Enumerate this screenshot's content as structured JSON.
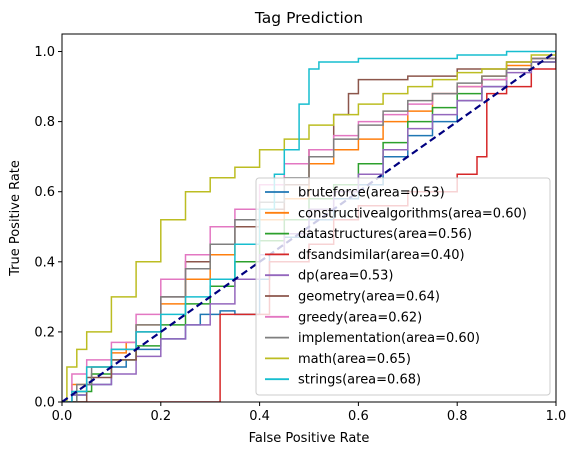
{
  "chart_data": {
    "type": "line",
    "title": "Tag Prediction",
    "xlabel": "False Positive Rate",
    "ylabel": "True Positive Rate",
    "xlim": [
      0.0,
      1.0
    ],
    "ylim": [
      0.0,
      1.05
    ],
    "xticks": [
      "0.0",
      "0.2",
      "0.4",
      "0.6",
      "0.8",
      "1.0"
    ],
    "yticks": [
      "0.0",
      "0.2",
      "0.4",
      "0.6",
      "0.8",
      "1.0"
    ],
    "grid": false,
    "legend_position": "lower-right",
    "diagonal": {
      "color": "#000080",
      "style": "dashed",
      "points": [
        [
          0,
          0
        ],
        [
          1,
          1
        ]
      ]
    },
    "series": [
      {
        "name": "bruteforce(area=0.53)",
        "color": "#1f77b4",
        "points": [
          [
            0,
            0
          ],
          [
            0.02,
            0.02
          ],
          [
            0.05,
            0.05
          ],
          [
            0.1,
            0.1
          ],
          [
            0.13,
            0.12
          ],
          [
            0.15,
            0.15
          ],
          [
            0.2,
            0.18
          ],
          [
            0.25,
            0.22
          ],
          [
            0.28,
            0.25
          ],
          [
            0.3,
            0.25
          ],
          [
            0.32,
            0.26
          ],
          [
            0.35,
            0.25
          ],
          [
            0.4,
            0.35
          ],
          [
            0.42,
            0.42
          ],
          [
            0.45,
            0.47
          ],
          [
            0.5,
            0.52
          ],
          [
            0.55,
            0.58
          ],
          [
            0.6,
            0.62
          ],
          [
            0.65,
            0.7
          ],
          [
            0.7,
            0.76
          ],
          [
            0.75,
            0.8
          ],
          [
            0.8,
            0.86
          ],
          [
            0.85,
            0.9
          ],
          [
            0.9,
            0.95
          ],
          [
            0.95,
            0.97
          ],
          [
            1,
            1
          ]
        ]
      },
      {
        "name": "constructivealgorithms(area=0.60)",
        "color": "#ff7f0e",
        "points": [
          [
            0,
            0
          ],
          [
            0.02,
            0.05
          ],
          [
            0.05,
            0.1
          ],
          [
            0.1,
            0.14
          ],
          [
            0.13,
            0.17
          ],
          [
            0.15,
            0.22
          ],
          [
            0.2,
            0.28
          ],
          [
            0.25,
            0.35
          ],
          [
            0.3,
            0.42
          ],
          [
            0.35,
            0.45
          ],
          [
            0.4,
            0.52
          ],
          [
            0.45,
            0.58
          ],
          [
            0.5,
            0.68
          ],
          [
            0.55,
            0.72
          ],
          [
            0.6,
            0.75
          ],
          [
            0.65,
            0.8
          ],
          [
            0.7,
            0.83
          ],
          [
            0.75,
            0.88
          ],
          [
            0.8,
            0.9
          ],
          [
            0.85,
            0.93
          ],
          [
            0.9,
            0.96
          ],
          [
            0.95,
            0.98
          ],
          [
            1,
            1
          ]
        ]
      },
      {
        "name": "datastructures(area=0.56)",
        "color": "#2ca02c",
        "points": [
          [
            0,
            0
          ],
          [
            0.03,
            0.03
          ],
          [
            0.06,
            0.08
          ],
          [
            0.1,
            0.12
          ],
          [
            0.15,
            0.16
          ],
          [
            0.2,
            0.22
          ],
          [
            0.25,
            0.28
          ],
          [
            0.3,
            0.33
          ],
          [
            0.35,
            0.4
          ],
          [
            0.4,
            0.46
          ],
          [
            0.45,
            0.52
          ],
          [
            0.5,
            0.58
          ],
          [
            0.55,
            0.62
          ],
          [
            0.6,
            0.68
          ],
          [
            0.65,
            0.74
          ],
          [
            0.7,
            0.8
          ],
          [
            0.75,
            0.84
          ],
          [
            0.8,
            0.88
          ],
          [
            0.85,
            0.92
          ],
          [
            0.9,
            0.95
          ],
          [
            0.95,
            0.97
          ],
          [
            1,
            1
          ]
        ]
      },
      {
        "name": "dfsandsimilar(area=0.40)",
        "color": "#d62728",
        "points": [
          [
            0,
            0
          ],
          [
            0.32,
            0
          ],
          [
            0.32,
            0.25
          ],
          [
            0.4,
            0.25
          ],
          [
            0.42,
            0.4
          ],
          [
            0.5,
            0.45
          ],
          [
            0.55,
            0.52
          ],
          [
            0.6,
            0.56
          ],
          [
            0.7,
            0.6
          ],
          [
            0.8,
            0.6
          ],
          [
            0.8,
            0.65
          ],
          [
            0.84,
            0.7
          ],
          [
            0.86,
            0.82
          ],
          [
            0.86,
            0.88
          ],
          [
            0.9,
            0.9
          ],
          [
            0.95,
            0.95
          ],
          [
            1,
            1
          ]
        ]
      },
      {
        "name": "dp(area=0.53)",
        "color": "#9467bd",
        "points": [
          [
            0,
            0
          ],
          [
            0.02,
            0.02
          ],
          [
            0.05,
            0.05
          ],
          [
            0.1,
            0.08
          ],
          [
            0.15,
            0.13
          ],
          [
            0.2,
            0.18
          ],
          [
            0.25,
            0.22
          ],
          [
            0.3,
            0.28
          ],
          [
            0.35,
            0.35
          ],
          [
            0.4,
            0.42
          ],
          [
            0.45,
            0.48
          ],
          [
            0.5,
            0.55
          ],
          [
            0.55,
            0.6
          ],
          [
            0.6,
            0.65
          ],
          [
            0.65,
            0.72
          ],
          [
            0.7,
            0.78
          ],
          [
            0.75,
            0.82
          ],
          [
            0.8,
            0.86
          ],
          [
            0.85,
            0.9
          ],
          [
            0.9,
            0.94
          ],
          [
            0.95,
            0.97
          ],
          [
            1,
            1
          ]
        ]
      },
      {
        "name": "geometry(area=0.64)",
        "color": "#8c564b",
        "points": [
          [
            0,
            0
          ],
          [
            0.05,
            0.07
          ],
          [
            0.1,
            0.12
          ],
          [
            0.15,
            0.2
          ],
          [
            0.2,
            0.3
          ],
          [
            0.25,
            0.4
          ],
          [
            0.3,
            0.45
          ],
          [
            0.35,
            0.5
          ],
          [
            0.4,
            0.55
          ],
          [
            0.45,
            0.62
          ],
          [
            0.5,
            0.72
          ],
          [
            0.55,
            0.82
          ],
          [
            0.58,
            0.88
          ],
          [
            0.6,
            0.92
          ],
          [
            0.7,
            0.93
          ],
          [
            0.8,
            0.95
          ],
          [
            0.9,
            0.97
          ],
          [
            0.95,
            0.98
          ],
          [
            1,
            1
          ]
        ]
      },
      {
        "name": "greedy(area=0.62)",
        "color": "#e377c2",
        "points": [
          [
            0,
            0
          ],
          [
            0.02,
            0.08
          ],
          [
            0.05,
            0.12
          ],
          [
            0.1,
            0.17
          ],
          [
            0.15,
            0.25
          ],
          [
            0.2,
            0.35
          ],
          [
            0.25,
            0.42
          ],
          [
            0.3,
            0.5
          ],
          [
            0.35,
            0.55
          ],
          [
            0.4,
            0.62
          ],
          [
            0.45,
            0.68
          ],
          [
            0.5,
            0.72
          ],
          [
            0.55,
            0.76
          ],
          [
            0.6,
            0.8
          ],
          [
            0.65,
            0.82
          ],
          [
            0.7,
            0.85
          ],
          [
            0.75,
            0.88
          ],
          [
            0.8,
            0.9
          ],
          [
            0.85,
            0.92
          ],
          [
            0.9,
            0.95
          ],
          [
            0.95,
            0.98
          ],
          [
            1,
            1
          ]
        ]
      },
      {
        "name": "implementation(area=0.60)",
        "color": "#7f7f7f",
        "points": [
          [
            0,
            0
          ],
          [
            0.03,
            0.05
          ],
          [
            0.06,
            0.1
          ],
          [
            0.1,
            0.15
          ],
          [
            0.15,
            0.22
          ],
          [
            0.2,
            0.3
          ],
          [
            0.25,
            0.38
          ],
          [
            0.3,
            0.45
          ],
          [
            0.35,
            0.52
          ],
          [
            0.4,
            0.57
          ],
          [
            0.45,
            0.64
          ],
          [
            0.5,
            0.7
          ],
          [
            0.55,
            0.75
          ],
          [
            0.6,
            0.79
          ],
          [
            0.65,
            0.83
          ],
          [
            0.7,
            0.86
          ],
          [
            0.75,
            0.88
          ],
          [
            0.8,
            0.91
          ],
          [
            0.85,
            0.93
          ],
          [
            0.9,
            0.95
          ],
          [
            0.95,
            0.98
          ],
          [
            1,
            1
          ]
        ]
      },
      {
        "name": "math(area=0.65)",
        "color": "#bcbd22",
        "points": [
          [
            0,
            0
          ],
          [
            0.01,
            0.1
          ],
          [
            0.03,
            0.15
          ],
          [
            0.05,
            0.2
          ],
          [
            0.1,
            0.3
          ],
          [
            0.15,
            0.4
          ],
          [
            0.2,
            0.52
          ],
          [
            0.25,
            0.6
          ],
          [
            0.3,
            0.64
          ],
          [
            0.35,
            0.67
          ],
          [
            0.4,
            0.72
          ],
          [
            0.45,
            0.75
          ],
          [
            0.5,
            0.79
          ],
          [
            0.55,
            0.82
          ],
          [
            0.6,
            0.85
          ],
          [
            0.65,
            0.88
          ],
          [
            0.7,
            0.9
          ],
          [
            0.75,
            0.92
          ],
          [
            0.8,
            0.94
          ],
          [
            0.85,
            0.95
          ],
          [
            0.9,
            0.97
          ],
          [
            0.95,
            0.99
          ],
          [
            1,
            1
          ]
        ]
      },
      {
        "name": "strings(area=0.68)",
        "color": "#17becf",
        "points": [
          [
            0,
            0
          ],
          [
            0.02,
            0.03
          ],
          [
            0.05,
            0.1
          ],
          [
            0.1,
            0.15
          ],
          [
            0.15,
            0.2
          ],
          [
            0.2,
            0.25
          ],
          [
            0.25,
            0.3
          ],
          [
            0.3,
            0.35
          ],
          [
            0.35,
            0.45
          ],
          [
            0.4,
            0.55
          ],
          [
            0.43,
            0.65
          ],
          [
            0.45,
            0.72
          ],
          [
            0.48,
            0.85
          ],
          [
            0.5,
            0.95
          ],
          [
            0.52,
            0.97
          ],
          [
            0.6,
            0.98
          ],
          [
            0.7,
            0.98
          ],
          [
            0.8,
            0.99
          ],
          [
            0.9,
            1
          ],
          [
            1,
            1
          ]
        ]
      }
    ]
  }
}
